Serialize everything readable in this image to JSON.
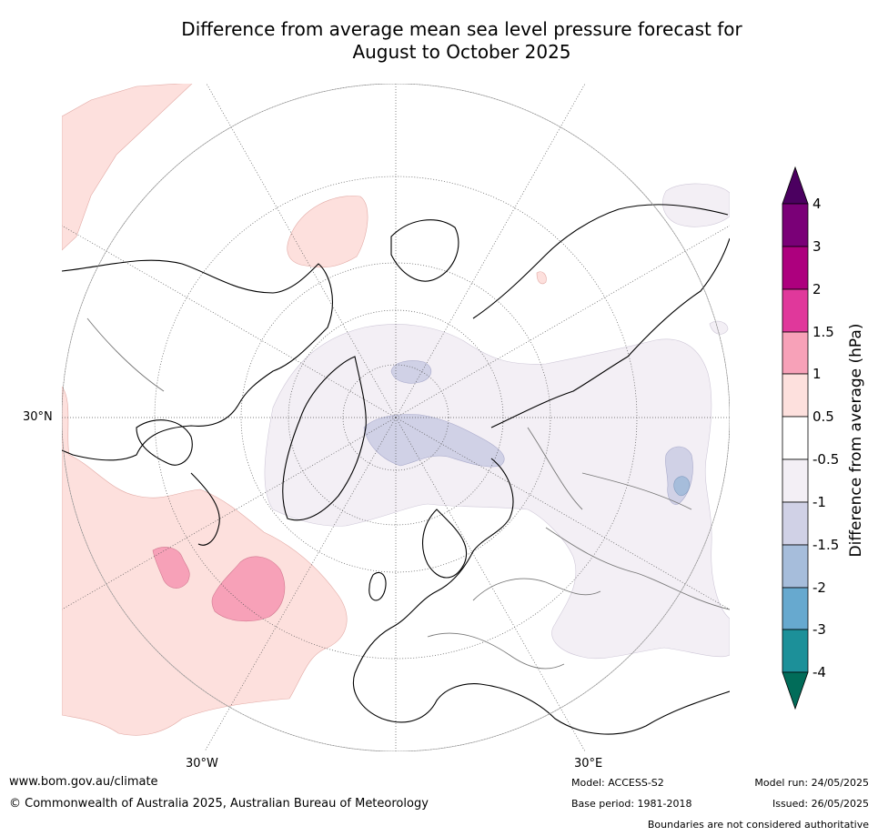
{
  "title": {
    "line1": "Difference from average mean sea level pressure forecast for",
    "line2": "August to October 2025"
  },
  "map": {
    "projection": "north-polar-stereographic",
    "graticule_labels": {
      "lat_30n": "30°N",
      "lon_30w": "30°W",
      "lon_30e": "30°E"
    },
    "anomaly_regions": [
      {
        "name": "north-pacific-northwest",
        "class": "0.5 to 1"
      },
      {
        "name": "central-pacific",
        "class": "0.5 to 1"
      },
      {
        "name": "north-atlantic",
        "class": "0.5 to 1"
      },
      {
        "name": "north-atlantic-core-west",
        "class": "1 to 1.5"
      },
      {
        "name": "north-atlantic-core-east",
        "class": "1 to 1.5"
      },
      {
        "name": "arctic-siberia",
        "class": "-1 to -0.5"
      },
      {
        "name": "greenland-barents",
        "class": "-1.5 to -1"
      },
      {
        "name": "central-asia-core",
        "class": "-2 to -1.5"
      }
    ]
  },
  "colorbar": {
    "title": "Difference from average (hPa)",
    "tick_labels": [
      "4",
      "3",
      "2",
      "1.5",
      "1",
      "0.5",
      "-0.5",
      "-1",
      "-1.5",
      "-2",
      "-3",
      "-4"
    ],
    "colors": {
      "above_4": "#4b0060",
      "3_to_4": "#7a0077",
      "2_to_3": "#ad007e",
      "1.5_to_2": "#e0389b",
      "1_to_1.5": "#f7a1b8",
      "0.5_to_1": "#fde0dd",
      "neutral": "#ffffff",
      "-1_to_-0.5": "#f3eff5",
      "-1.5_to_-1": "#d0d1e6",
      "-2_to_-1.5": "#a6bddb",
      "-3_to_-2": "#67a9cf",
      "-4_to_-3": "#1c9099",
      "below_-4": "#016c59"
    }
  },
  "footer": {
    "website": "www.bom.gov.au/climate",
    "copyright": "© Commonwealth of Australia 2025, Australian Bureau of Meteorology",
    "model": "Model: ACCESS-S2",
    "base_period": "Base period: 1981-2018",
    "model_run": "Model run: 24/05/2025",
    "issued": "Issued: 26/05/2025",
    "disclaimer": "Boundaries are not considered authoritative"
  }
}
